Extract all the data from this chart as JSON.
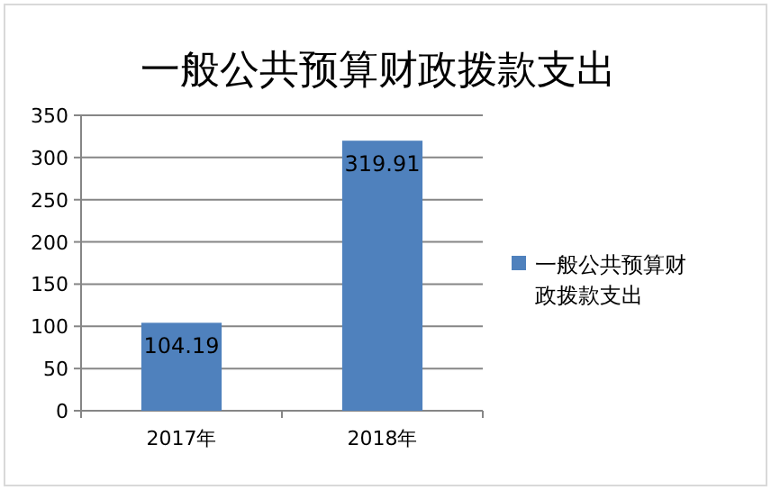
{
  "chart_data": {
    "type": "bar",
    "title": "一般公共预算财政拨款支出",
    "categories": [
      "2017年",
      "2018年"
    ],
    "series": [
      {
        "name": "一般公共预算财政拨款支出",
        "color": "#4f81bd",
        "values": [
          104.19,
          319.91
        ]
      }
    ],
    "ylim": [
      0,
      350
    ],
    "yticks": [
      0,
      50,
      100,
      150,
      200,
      250,
      300,
      350
    ],
    "grid": "y",
    "legend": "right",
    "data_labels": true
  }
}
